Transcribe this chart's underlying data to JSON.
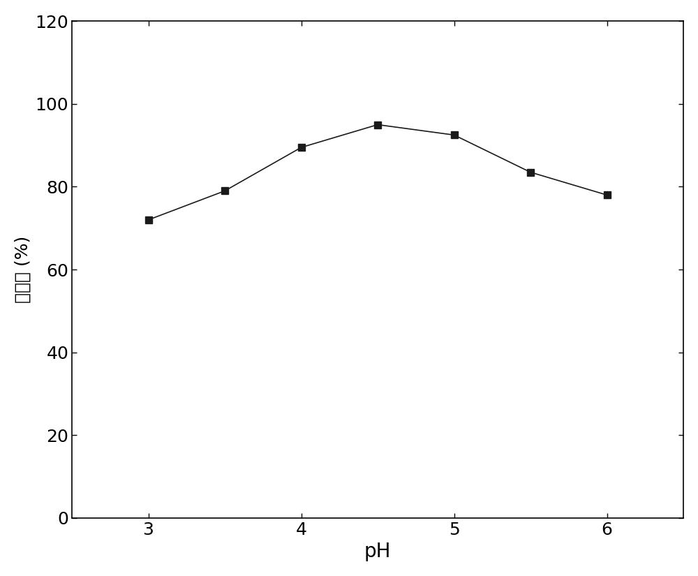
{
  "x": [
    3.0,
    3.5,
    4.0,
    4.5,
    5.0,
    5.5,
    6.0
  ],
  "y": [
    72.0,
    79.0,
    89.5,
    95.0,
    92.5,
    83.5,
    78.0
  ],
  "xlabel": "pH",
  "ylabel": "萌取率 (%)",
  "xlim": [
    2.5,
    6.5
  ],
  "ylim": [
    0,
    120
  ],
  "xticks": [
    3,
    4,
    5,
    6
  ],
  "yticks": [
    0,
    20,
    40,
    60,
    80,
    100,
    120
  ],
  "line_color": "#1a1a1a",
  "marker": "s",
  "marker_size": 7,
  "line_width": 1.2,
  "xlabel_fontsize": 20,
  "ylabel_fontsize": 18,
  "tick_fontsize": 18,
  "background_color": "#ffffff"
}
